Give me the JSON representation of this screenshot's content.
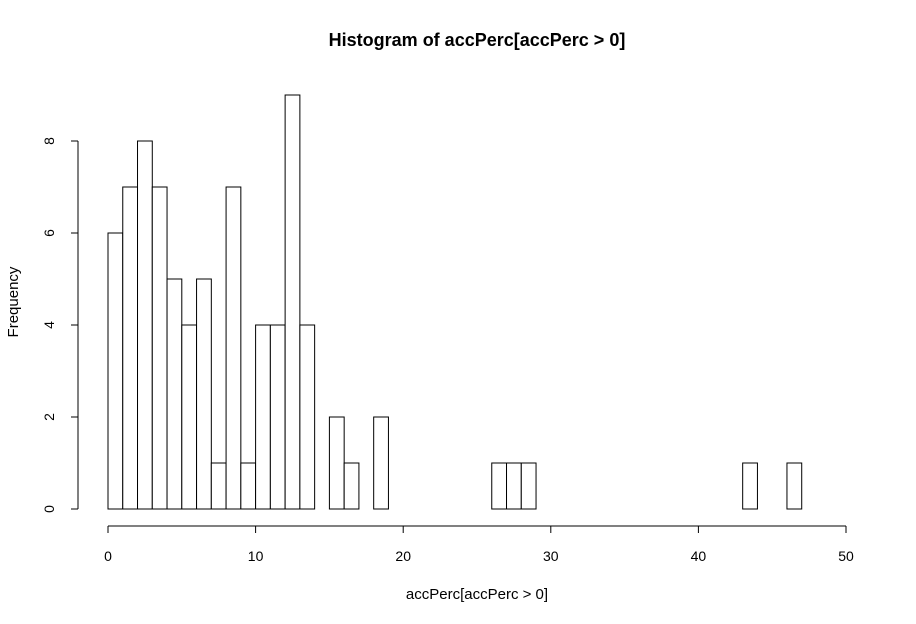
{
  "chart_data": {
    "type": "bar",
    "title": "Histogram of accPerc[accPerc > 0]",
    "xlabel": "accPerc[accPerc > 0]",
    "ylabel": "Frequency",
    "bin_width": 1,
    "x_start": 0,
    "values": [
      6,
      7,
      8,
      7,
      5,
      4,
      5,
      1,
      7,
      1,
      4,
      4,
      9,
      4,
      0,
      2,
      1,
      0,
      2,
      0,
      0,
      0,
      0,
      0,
      0,
      0,
      1,
      1,
      1,
      0,
      0,
      0,
      0,
      0,
      0,
      0,
      0,
      0,
      0,
      0,
      0,
      0,
      0,
      1,
      0,
      0,
      1
    ],
    "xlim": [
      0,
      50
    ],
    "ylim": [
      0,
      9
    ],
    "xticks": [
      0,
      10,
      20,
      30,
      40,
      50
    ],
    "yticks": [
      0,
      2,
      4,
      6,
      8
    ],
    "bar_fill": "#ffffff",
    "bar_stroke": "#000000",
    "grid": false,
    "legend": "none"
  }
}
